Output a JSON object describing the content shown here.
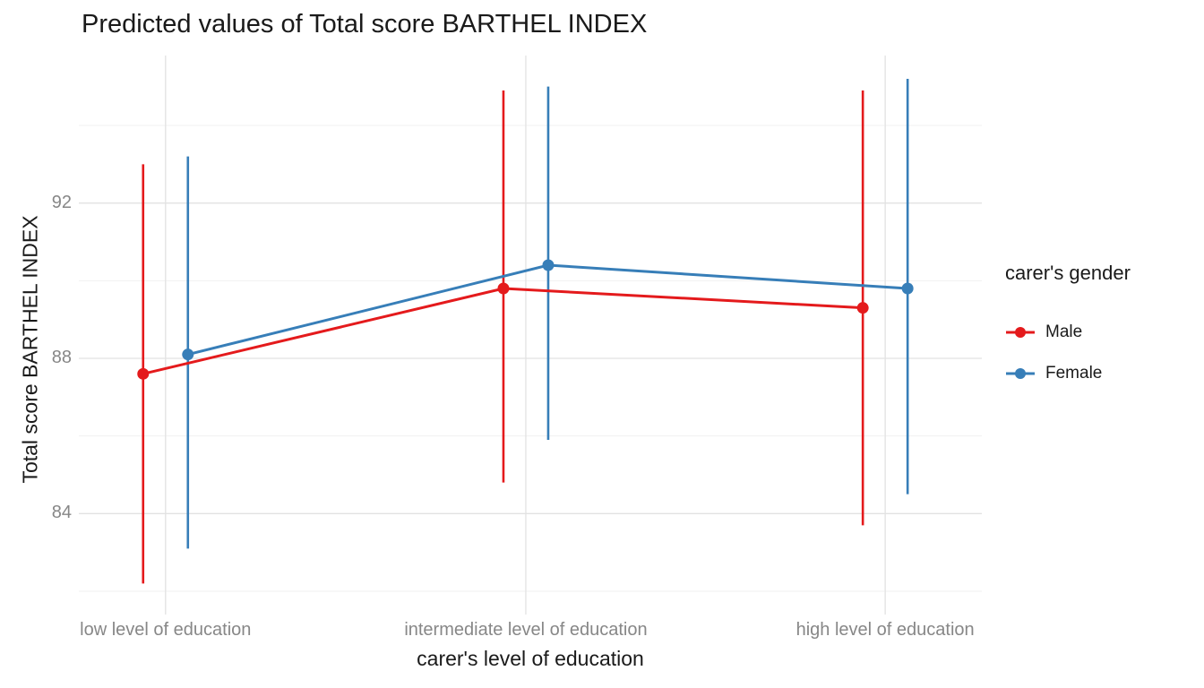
{
  "chart_data": {
    "type": "line",
    "title": "Predicted values of Total score BARTHEL INDEX",
    "xlabel": "carer's level of education",
    "ylabel": "Total score BARTHEL INDEX",
    "categories": [
      "low level of education",
      "intermediate level of education",
      "high level of education"
    ],
    "y_ticks": [
      84,
      88,
      92
    ],
    "y_minor_ticks": [
      82,
      86,
      90,
      94
    ],
    "ylim": [
      81.4,
      95.8
    ],
    "grid": true,
    "legend": {
      "title": "carer's gender",
      "position": "right"
    },
    "series": [
      {
        "name": "Male",
        "color": "#E41A1C",
        "values": [
          87.6,
          89.8,
          89.3
        ],
        "ci_low": [
          82.2,
          84.8,
          83.7
        ],
        "ci_high": [
          93.0,
          94.9,
          94.9
        ]
      },
      {
        "name": "Female",
        "color": "#377EB8",
        "values": [
          88.1,
          90.4,
          89.8
        ],
        "ci_low": [
          83.1,
          85.9,
          84.5
        ],
        "ci_high": [
          93.2,
          95.0,
          95.2
        ]
      }
    ]
  },
  "colors": {
    "grid_major": "#e2e2e2",
    "grid_minor": "#f1f1f1",
    "tick_label": "#878787",
    "text": "#1a1a1a",
    "background": "#ffffff"
  }
}
